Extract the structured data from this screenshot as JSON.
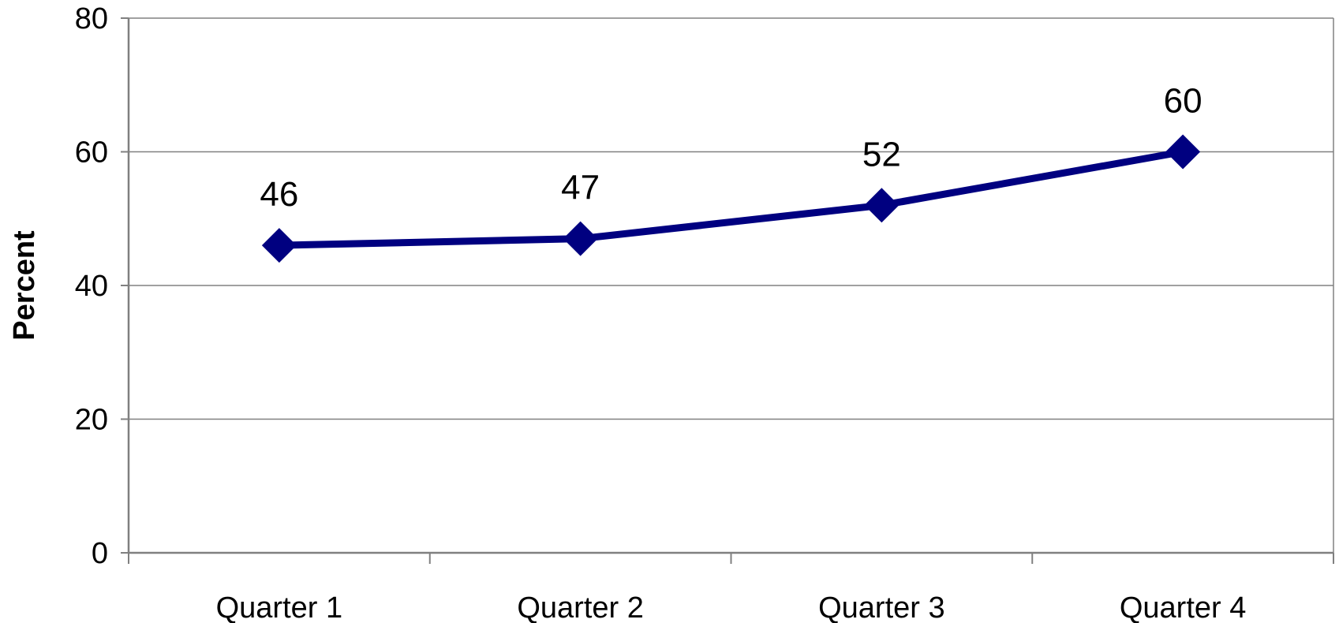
{
  "chart_data": {
    "type": "line",
    "title": "",
    "xlabel": "",
    "ylabel": "Percent",
    "categories": [
      "Quarter 1",
      "Quarter 2",
      "Quarter 3",
      "Quarter 4"
    ],
    "series": [
      {
        "values": [
          46,
          47,
          52,
          60
        ],
        "color": "#000080",
        "marker": "diamond"
      }
    ],
    "data_labels": [
      "46",
      "47",
      "52",
      "60"
    ],
    "ylim": [
      0,
      80
    ],
    "yticks": [
      "0",
      "20",
      "40",
      "60",
      "80"
    ],
    "grid": true,
    "legend": "none",
    "colors": {
      "grid": "#808080",
      "axis": "#808080",
      "line": "#000080"
    }
  }
}
